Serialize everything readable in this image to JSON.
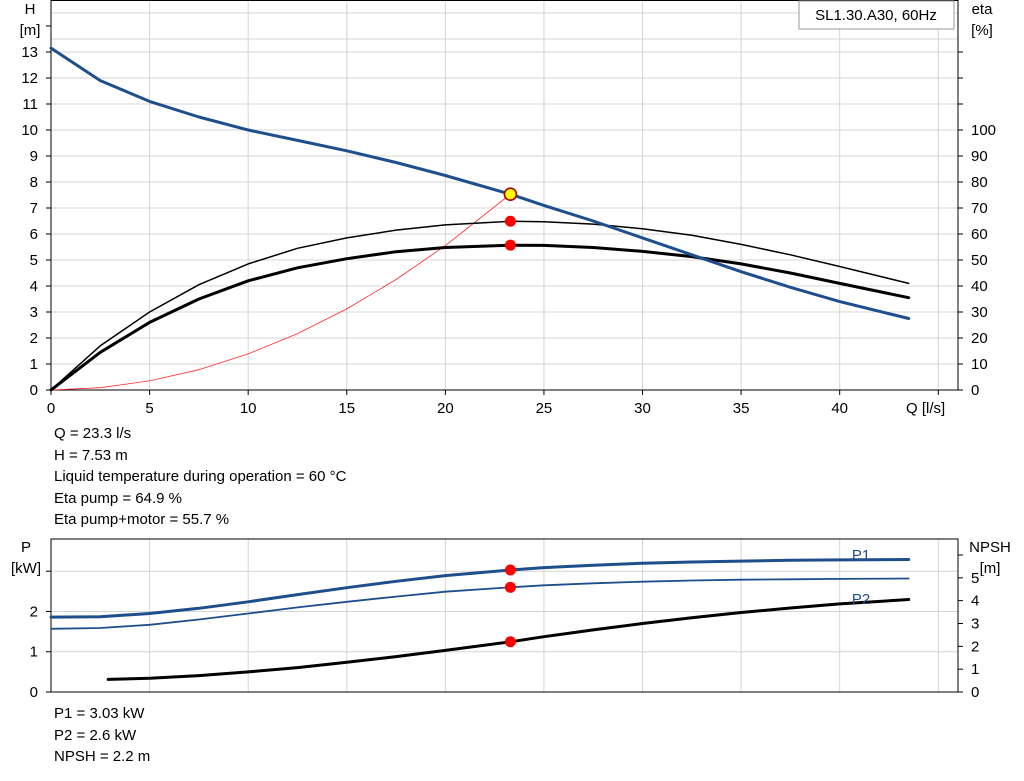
{
  "chart_data": [
    {
      "type": "line",
      "legend_box": "SL1.30.A30, 60Hz",
      "xlabel": "Q [l/s]",
      "ylabel_left": [
        "H",
        "[m]"
      ],
      "ylabel_right": [
        "eta",
        "[%]"
      ],
      "xlim": [
        0,
        46
      ],
      "ylim_left": [
        0,
        15
      ],
      "ylim_right": [
        0,
        150
      ],
      "x_ticks": [
        0,
        5,
        10,
        15,
        20,
        25,
        30,
        35,
        40
      ],
      "y_left_ticks": [
        0,
        1,
        2,
        3,
        4,
        5,
        6,
        7,
        8,
        9,
        10,
        11,
        12,
        13
      ],
      "y_right_ticks": [
        0,
        10,
        20,
        30,
        40,
        50,
        60,
        70,
        80,
        90,
        100
      ],
      "grid": true,
      "series": [
        {
          "role": "H",
          "axis": "left",
          "color": "#1f4e8c",
          "width": 3,
          "x": [
            0,
            2.5,
            5,
            7.5,
            10,
            12.5,
            15,
            17.5,
            20,
            23.3,
            25,
            27.5,
            30,
            32.5,
            35,
            37.5,
            40,
            43.5
          ],
          "y": [
            13.15,
            11.9,
            11.1,
            10.5,
            10.0,
            9.6,
            9.2,
            8.75,
            8.25,
            7.53,
            7.1,
            6.5,
            5.85,
            5.2,
            4.55,
            3.95,
            3.4,
            2.75
          ]
        },
        {
          "role": "eta_pump",
          "axis": "right",
          "color": "#000000",
          "width": 1.5,
          "x": [
            0,
            2.5,
            5,
            7.5,
            10,
            12.5,
            15,
            17.5,
            20,
            23.3,
            25,
            27.5,
            30,
            32.5,
            35,
            37.5,
            40,
            43.5
          ],
          "y": [
            0,
            17,
            30,
            40.5,
            48.5,
            54.5,
            58.5,
            61.5,
            63.5,
            64.9,
            64.7,
            63.8,
            62.0,
            59.5,
            56.0,
            52.0,
            47.5,
            41.0
          ]
        },
        {
          "role": "eta_pump_motor",
          "axis": "right",
          "color": "#000000",
          "width": 3,
          "x": [
            0,
            2.5,
            5,
            7.5,
            10,
            12.5,
            15,
            17.5,
            20,
            23.3,
            25,
            27.5,
            30,
            32.5,
            35,
            37.5,
            40,
            43.5
          ],
          "y": [
            0,
            14.5,
            26,
            35,
            42,
            47,
            50.5,
            53.2,
            54.8,
            55.7,
            55.6,
            54.8,
            53.3,
            51.3,
            48.5,
            45.0,
            41.0,
            35.5
          ]
        },
        {
          "role": "system_curve",
          "axis": "left",
          "color": "#ff2a2a",
          "width": 0.8,
          "x": [
            0,
            2.5,
            5,
            7.5,
            10,
            12.5,
            15,
            17.5,
            20,
            23.3
          ],
          "y": [
            0,
            0.09,
            0.35,
            0.78,
            1.39,
            2.17,
            3.12,
            4.25,
            5.55,
            7.53
          ]
        }
      ],
      "operating_point": {
        "x": 23.3,
        "h": 7.53,
        "eta_pump": 64.9,
        "eta_pump_motor": 55.7,
        "color_fill": "#ffff00",
        "color_marker": "#ff0000"
      }
    },
    {
      "type": "line",
      "ylabel_left": [
        "P",
        "[kW]"
      ],
      "ylabel_right": [
        "NPSH",
        "[m]"
      ],
      "xlim": [
        0,
        46
      ],
      "ylim_left": [
        0,
        3.8
      ],
      "ylim_right": [
        0,
        6.7
      ],
      "y_left_ticks": [
        0,
        1,
        2
      ],
      "y_right_ticks": [
        0,
        1,
        2,
        3,
        4,
        5
      ],
      "grid": true,
      "series": [
        {
          "name": "P1",
          "axis": "left",
          "color": "#1f4e8c",
          "width": 3,
          "x": [
            0,
            2.5,
            5,
            7.5,
            10,
            12.5,
            15,
            17.5,
            20,
            23.3,
            25,
            27.5,
            30,
            32.5,
            35,
            37.5,
            40,
            43.5
          ],
          "y": [
            1.86,
            1.87,
            1.95,
            2.08,
            2.24,
            2.42,
            2.59,
            2.75,
            2.89,
            3.03,
            3.09,
            3.15,
            3.2,
            3.23,
            3.25,
            3.27,
            3.28,
            3.29
          ]
        },
        {
          "name": "P2",
          "axis": "left",
          "color": "#1f4e8c",
          "width": 1.8,
          "x": [
            0,
            2.5,
            5,
            7.5,
            10,
            12.5,
            15,
            17.5,
            20,
            23.3,
            25,
            27.5,
            30,
            32.5,
            35,
            37.5,
            40,
            43.5
          ],
          "y": [
            1.57,
            1.59,
            1.67,
            1.8,
            1.95,
            2.1,
            2.24,
            2.37,
            2.49,
            2.6,
            2.65,
            2.7,
            2.74,
            2.77,
            2.79,
            2.8,
            2.81,
            2.82
          ]
        },
        {
          "name": "NPSH",
          "axis": "right",
          "color": "#000000",
          "width": 3,
          "x": [
            2.9,
            5,
            7.5,
            10,
            12.5,
            15,
            17.5,
            20,
            23.3,
            25,
            27.5,
            30,
            32.5,
            35,
            37.5,
            40,
            43.5
          ],
          "y": [
            0.55,
            0.6,
            0.72,
            0.88,
            1.07,
            1.3,
            1.55,
            1.82,
            2.2,
            2.42,
            2.72,
            3.0,
            3.25,
            3.48,
            3.68,
            3.86,
            4.05
          ]
        }
      ],
      "operating_point": {
        "x": 23.3,
        "p1": 3.03,
        "p2": 2.6,
        "npsh": 2.2,
        "color_marker": "#ff0000"
      }
    }
  ],
  "readout_top": [
    "Q = 23.3 l/s",
    "H = 7.53 m",
    "Liquid temperature during operation = 60 °C",
    "Eta pump = 64.9 %",
    "Eta pump+motor = 55.7 %"
  ],
  "readout_bottom": [
    "P1 = 3.03 kW",
    "P2 = 2.6 kW",
    "NPSH = 2.2 m"
  ]
}
